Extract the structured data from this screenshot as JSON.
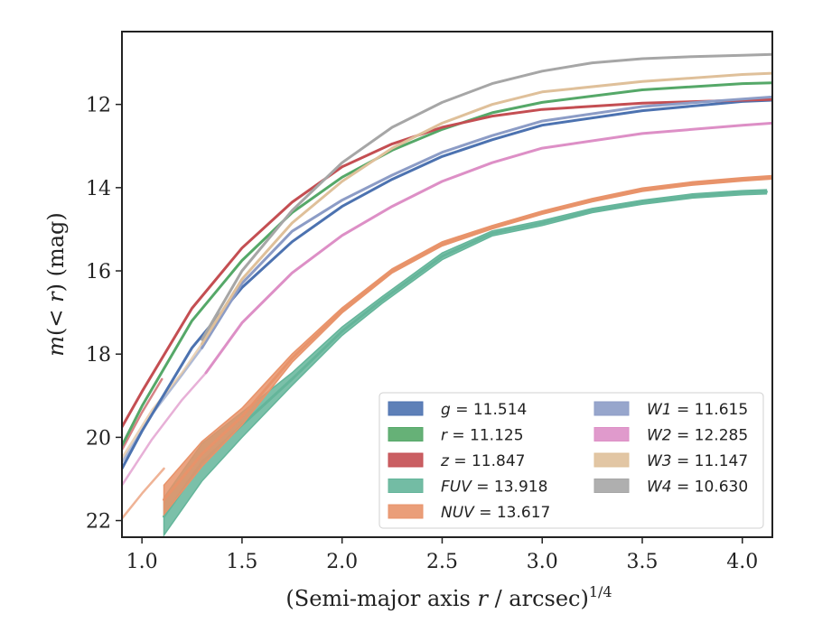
{
  "chart_data": {
    "type": "line",
    "xlabel": "(Semi-major axis r / arcsec)",
    "xlabel_parts": {
      "main": "(Semi-major axis ",
      "var": "r",
      "rest": " / arcsec)",
      "sup": "1/4"
    },
    "ylabel": "m(< r) (mag)",
    "ylabel_parts": {
      "pre": "m",
      "mid": "(< ",
      "var": "r",
      "post": ") (mag)"
    },
    "xlim": [
      0.9,
      4.15
    ],
    "ylim": [
      22.4,
      10.25
    ],
    "y_inverted": true,
    "xticks": [
      "1.0",
      "1.5",
      "2.0",
      "2.5",
      "3.0",
      "3.5",
      "4.0"
    ],
    "yticks": [
      "12",
      "14",
      "16",
      "18",
      "20",
      "22"
    ],
    "grid": false,
    "legend_position": "lower-right",
    "series": [
      {
        "name": "g = 11.514",
        "var": "g",
        "value": "11.514",
        "color": "#4c72b0",
        "x": [
          0.9,
          1.0,
          1.25,
          1.5,
          1.75,
          2.0,
          2.25,
          2.5,
          2.75,
          3.0,
          3.5,
          4.0,
          4.15
        ],
        "y": [
          20.75,
          19.85,
          17.85,
          16.4,
          15.3,
          14.45,
          13.8,
          13.25,
          12.85,
          12.5,
          12.15,
          11.93,
          11.9
        ]
      },
      {
        "name": "r = 11.125",
        "var": "r",
        "value": "11.125",
        "color": "#55a868",
        "x": [
          0.9,
          1.0,
          1.25,
          1.5,
          1.75,
          2.0,
          2.25,
          2.5,
          2.75,
          3.0,
          3.5,
          4.0,
          4.15
        ],
        "y": [
          20.2,
          19.25,
          17.2,
          15.75,
          14.6,
          13.75,
          13.1,
          12.6,
          12.2,
          11.95,
          11.65,
          11.5,
          11.48
        ]
      },
      {
        "name": "z = 11.847",
        "var": "z",
        "value": "11.847",
        "color": "#c44e52",
        "x": [
          0.9,
          1.0,
          1.25,
          1.5,
          1.75,
          2.0,
          2.25,
          2.5,
          2.75,
          3.0,
          3.5,
          4.0,
          4.15
        ],
        "y": [
          19.75,
          18.9,
          16.9,
          15.45,
          14.35,
          13.5,
          12.95,
          12.55,
          12.28,
          12.12,
          11.97,
          11.9,
          11.88
        ]
      },
      {
        "name": "FUV = 13.918",
        "var": "FUV",
        "value": "13.918",
        "color": "#64b59a",
        "x": [
          1.11,
          1.3,
          1.5,
          1.75,
          2.0,
          2.2,
          2.5,
          2.75,
          3.0,
          3.25,
          3.5,
          3.75,
          4.0,
          4.12
        ],
        "y": [
          21.9,
          20.6,
          19.7,
          18.6,
          17.45,
          16.7,
          15.65,
          15.1,
          14.85,
          14.55,
          14.35,
          14.2,
          14.12,
          14.1
        ],
        "band": [
          0.45,
          0.45,
          0.3,
          0.15,
          0.1,
          0.08,
          0.08,
          0.06,
          0.06,
          0.05,
          0.05,
          0.05,
          0.05,
          0.05
        ]
      },
      {
        "name": "NUV = 13.617",
        "var": "NUV",
        "value": "13.617",
        "color": "#e8936a",
        "x": [
          1.11,
          1.3,
          1.5,
          1.75,
          2.0,
          2.25,
          2.5,
          2.75,
          3.0,
          3.25,
          3.5,
          3.75,
          4.0,
          4.15
        ],
        "y": [
          21.5,
          20.4,
          19.5,
          18.1,
          16.95,
          16.0,
          15.35,
          14.95,
          14.6,
          14.3,
          14.05,
          13.9,
          13.8,
          13.75
        ],
        "band": [
          0.35,
          0.3,
          0.2,
          0.1,
          0.06,
          0.05,
          0.05,
          0.04,
          0.04,
          0.04,
          0.04,
          0.04,
          0.04,
          0.04
        ]
      },
      {
        "name": "W1 = 11.615",
        "var": "W1",
        "value": "11.615",
        "color": "#8c9cc6",
        "x": [
          1.3,
          1.5,
          1.75,
          2.0,
          2.25,
          2.5,
          2.75,
          3.0,
          3.5,
          4.0,
          4.15
        ],
        "y": [
          17.85,
          16.3,
          15.05,
          14.3,
          13.7,
          13.15,
          12.75,
          12.4,
          12.05,
          11.87,
          11.82
        ]
      },
      {
        "name": "W2 = 12.285",
        "var": "W2",
        "value": "12.285",
        "color": "#dd8fc6",
        "x": [
          1.32,
          1.5,
          1.75,
          2.0,
          2.25,
          2.5,
          2.75,
          3.0,
          3.5,
          4.0,
          4.15
        ],
        "y": [
          18.45,
          17.25,
          16.05,
          15.15,
          14.45,
          13.85,
          13.4,
          13.05,
          12.7,
          12.5,
          12.45
        ]
      },
      {
        "name": "W3 = 11.147",
        "var": "W3",
        "value": "11.147",
        "color": "#dfc09a",
        "x": [
          1.3,
          1.5,
          1.75,
          2.0,
          2.25,
          2.5,
          2.75,
          3.0,
          3.5,
          4.0,
          4.15
        ],
        "y": [
          17.75,
          16.2,
          14.85,
          13.85,
          13.05,
          12.45,
          12.0,
          11.7,
          11.45,
          11.28,
          11.25
        ]
      },
      {
        "name": "W4 = 10.630",
        "var": "W4",
        "value": "10.630",
        "color": "#a6a6a6",
        "x": [
          1.3,
          1.5,
          1.75,
          2.0,
          2.25,
          2.5,
          2.75,
          3.0,
          3.25,
          3.5,
          3.75,
          4.0,
          4.15
        ],
        "y": [
          17.65,
          16.0,
          14.55,
          13.4,
          12.55,
          11.95,
          11.5,
          11.2,
          11.0,
          10.9,
          10.85,
          10.82,
          10.8
        ]
      }
    ],
    "faint_extensions": [
      {
        "series": "z",
        "color": "#c44e52",
        "x": [
          0.9,
          1.0,
          1.1
        ],
        "y": [
          20.3,
          19.4,
          18.6
        ]
      },
      {
        "series": "W1",
        "color": "#8c9cc6",
        "x": [
          0.9,
          1.05,
          1.2,
          1.3
        ],
        "y": [
          20.6,
          19.45,
          18.5,
          17.85
        ]
      },
      {
        "series": "W2",
        "color": "#dd8fc6",
        "x": [
          0.9,
          1.05,
          1.2,
          1.32
        ],
        "y": [
          21.15,
          20.05,
          19.1,
          18.45
        ]
      },
      {
        "series": "W3",
        "color": "#dfc09a",
        "x": [
          0.9,
          1.05,
          1.2,
          1.3
        ],
        "y": [
          20.5,
          19.35,
          18.45,
          17.75
        ]
      },
      {
        "series": "NUV",
        "color": "#e8936a",
        "x": [
          0.9,
          1.0,
          1.11
        ],
        "y": [
          21.95,
          21.35,
          20.75
        ]
      }
    ]
  }
}
